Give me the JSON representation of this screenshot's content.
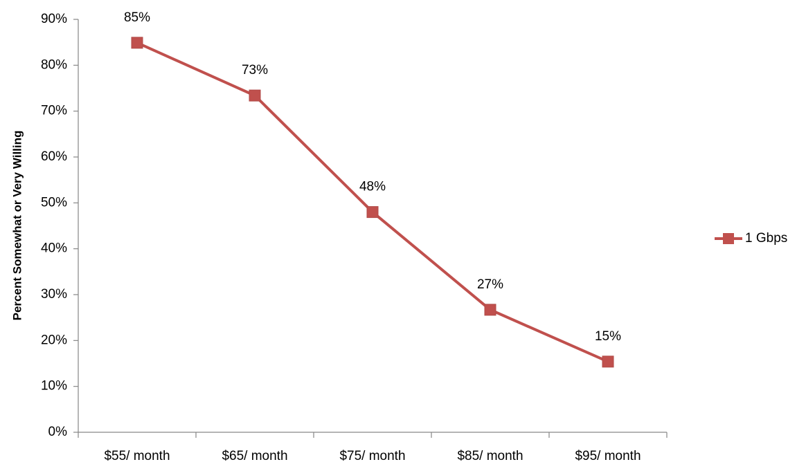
{
  "chart_data": {
    "type": "line",
    "y_label": "Percent Somewhat or Very Willing",
    "categories": [
      "$55/ month",
      "$65/ month",
      "$75/ month",
      "$85/ month",
      "$95/ month"
    ],
    "series": [
      {
        "name": "1 Gbps",
        "color": "#c0504d",
        "values": [
          84.9,
          73.4,
          48,
          26.7,
          15.4
        ],
        "value_labels": [
          "85%",
          "73%",
          "48%",
          "27%",
          "15%"
        ]
      }
    ],
    "ylim": [
      0,
      90
    ],
    "yticks": [
      {
        "value": 0,
        "label": "0%"
      },
      {
        "value": 10,
        "label": "10%"
      },
      {
        "value": 20,
        "label": "20%"
      },
      {
        "value": 30,
        "label": "30%"
      },
      {
        "value": 40,
        "label": "40%"
      },
      {
        "value": 50,
        "label": "50%"
      },
      {
        "value": 60,
        "label": "60%"
      },
      {
        "value": 70,
        "label": "70%"
      },
      {
        "value": 80,
        "label": "80%"
      },
      {
        "value": 90,
        "label": "90%"
      }
    ],
    "grid": false,
    "legend": "right"
  }
}
